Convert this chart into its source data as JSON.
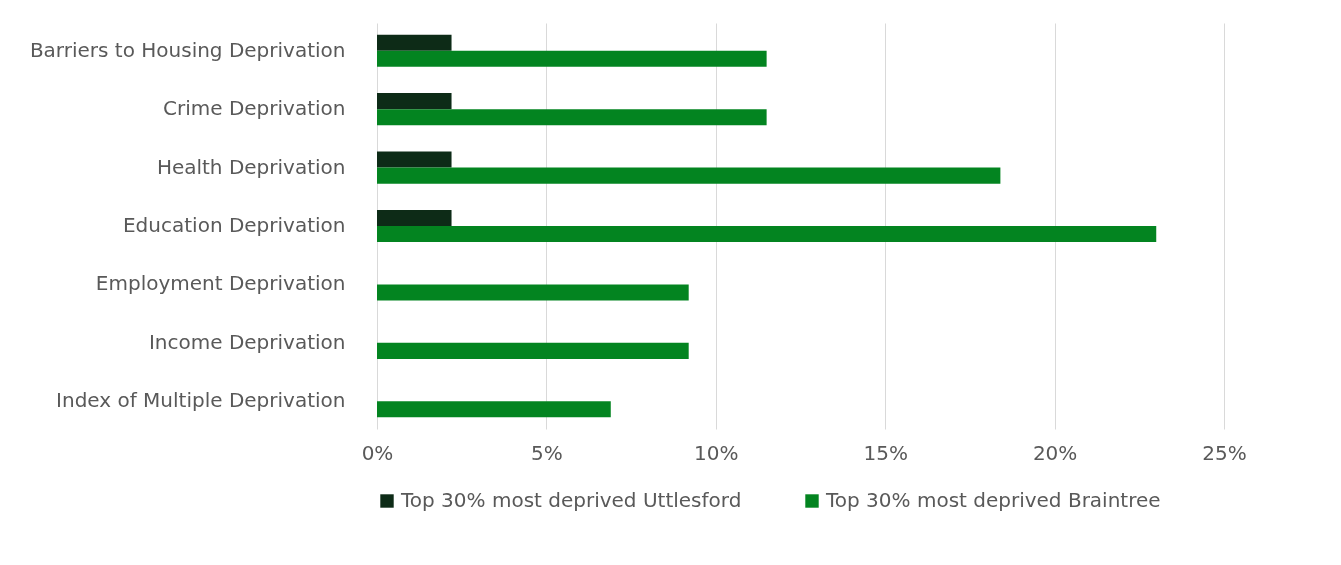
{
  "chart_data": {
    "type": "bar",
    "orientation": "horizontal",
    "categories": [
      "Barriers to Housing  Deprivation",
      "Crime  Deprivation",
      "Health Deprivation",
      "Education  Deprivation",
      "Employment Deprivation",
      "Income Deprivation",
      "Index of Multiple Deprivation"
    ],
    "series": [
      {
        "name": "Top 30% most deprived Uttlesford",
        "color": "#0d2b17",
        "values": [
          2.2,
          2.2,
          2.2,
          2.2,
          0,
          0,
          0
        ]
      },
      {
        "name": "Top 30% most deprived Braintree",
        "color": "#038420",
        "values": [
          11.5,
          11.5,
          18.4,
          23.0,
          9.2,
          9.2,
          6.9
        ]
      }
    ],
    "xlim": [
      0,
      25
    ],
    "xticks": [
      {
        "value": 0,
        "label": "0%"
      },
      {
        "value": 5,
        "label": "5%"
      },
      {
        "value": 10,
        "label": "10%"
      },
      {
        "value": 15,
        "label": "15%"
      },
      {
        "value": 20,
        "label": "20%"
      },
      {
        "value": 25,
        "label": "25%"
      }
    ],
    "grid": "x",
    "legend": "bottom"
  }
}
